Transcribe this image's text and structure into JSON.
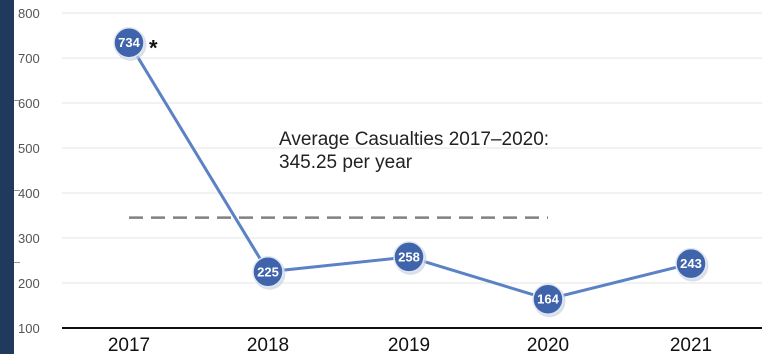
{
  "chart_data": {
    "type": "line",
    "categories": [
      "2017",
      "2018",
      "2019",
      "2020",
      "2021"
    ],
    "series": [
      {
        "values": [
          734,
          225,
          258,
          164,
          243
        ]
      }
    ],
    "data_labels": [
      "734",
      "225",
      "258",
      "164",
      "243"
    ],
    "ylim": [
      100,
      800
    ],
    "yticks": [
      100,
      200,
      300,
      400,
      500,
      600,
      700,
      800
    ],
    "grid": true,
    "reference_line": {
      "value": 345.25,
      "from": "2017",
      "to": "2020",
      "style": "dashed"
    },
    "annotation": {
      "line1": "Average Casualties 2017–2020:",
      "line2": "345.25 per year"
    },
    "footnote_marker": "*",
    "colors": {
      "line": "#5b82c4",
      "marker": "#3f64ab",
      "reference": "#808080",
      "grid": "#e6e6e6"
    }
  }
}
